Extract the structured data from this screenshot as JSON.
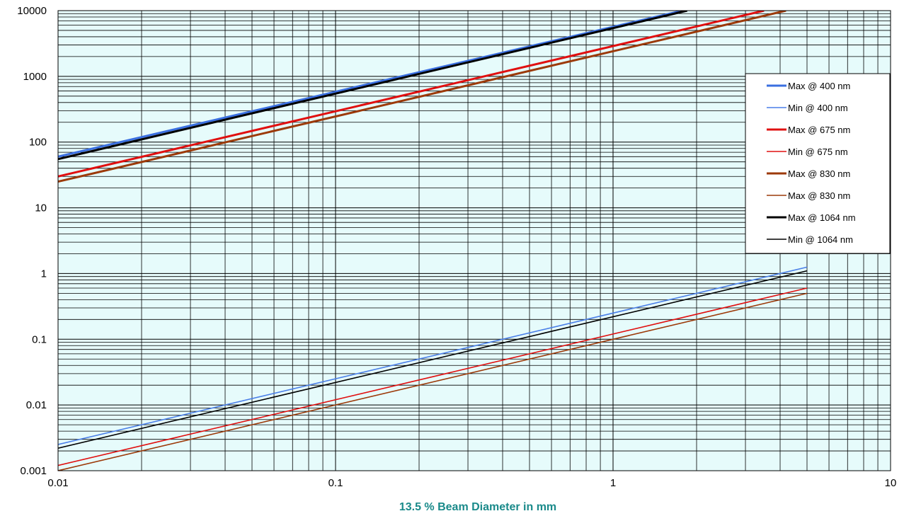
{
  "chart_data": {
    "type": "line",
    "xscale": "log",
    "yscale": "log",
    "xlim": [
      0.01,
      10
    ],
    "ylim": [
      0.001,
      10000
    ],
    "xlabel": "13.5 % Beam Diameter in mm",
    "ylabel": "",
    "grid": true,
    "legend_position": "right",
    "x_tick_labels": [
      "0.01",
      "0.1",
      "1",
      "10"
    ],
    "y_tick_labels": [
      "10000",
      "1000",
      "100",
      "10",
      "1",
      "0.1",
      "0.01",
      "0.001"
    ],
    "series": [
      {
        "name": "Max @ 400 nm",
        "color": "#3a6fe0",
        "weight": "thick",
        "x": [
          0.01,
          1.78
        ],
        "y": [
          60,
          10000
        ]
      },
      {
        "name": "Min @ 400 nm",
        "color": "#4a7fe8",
        "weight": "thin",
        "x": [
          0.01,
          5
        ],
        "y": [
          0.0025,
          1.25
        ]
      },
      {
        "name": "Max @ 675 nm",
        "color": "#e01010",
        "weight": "thick",
        "x": [
          0.01,
          3.5
        ],
        "y": [
          30,
          10000
        ]
      },
      {
        "name": "Min @ 675 nm",
        "color": "#e01010",
        "weight": "thin",
        "x": [
          0.01,
          5
        ],
        "y": [
          0.0012,
          0.6
        ]
      },
      {
        "name": "Max @ 830 nm",
        "color": "#9c3a0a",
        "weight": "thick",
        "x": [
          0.01,
          4.2
        ],
        "y": [
          25,
          10000
        ]
      },
      {
        "name": "Max @ 830 nm",
        "color": "#9c3a0a",
        "weight": "thin",
        "x": [
          0.01,
          5
        ],
        "y": [
          0.001,
          0.5
        ]
      },
      {
        "name": "Max @ 1064 nm",
        "color": "#000000",
        "weight": "thick",
        "x": [
          0.01,
          1.85
        ],
        "y": [
          55,
          10000
        ]
      },
      {
        "name": "Min @ 1064 nm",
        "color": "#000000",
        "weight": "thin",
        "x": [
          0.01,
          5
        ],
        "y": [
          0.0022,
          1.1
        ]
      }
    ]
  },
  "colors": {
    "plot_background": "#e6fbfb",
    "grid_line": "#000000",
    "axis_label": "#1a8a8a"
  }
}
